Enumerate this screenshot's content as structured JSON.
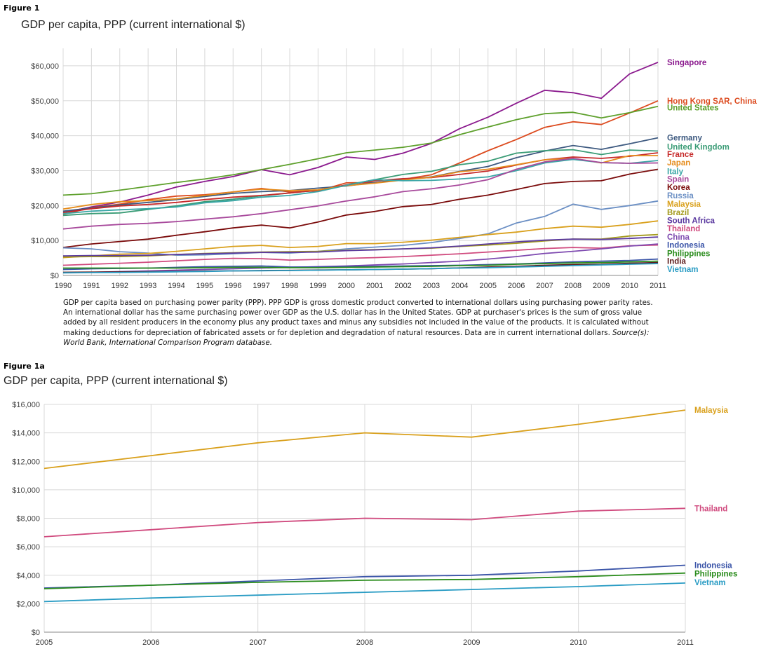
{
  "figure1": {
    "label": "Figure 1",
    "title": "GDP per capita, PPP (current international $)"
  },
  "caption": {
    "text": "GDP per capita based on purchasing power parity (PPP). PPP GDP is gross domestic product converted to international dollars using purchasing power parity rates. An international dollar has the same purchasing power over GDP as the U.S. dollar has in the United States. GDP at purchaser's prices is the sum of gross value added by all resident producers in the economy plus any product taxes and minus any subsidies not included in the value of the products. It is calculated without making deductions for depreciation of fabricated assets or for depletion and degradation of natural resources. Data are in current international dollars.",
    "source": "Source(s): World Bank, International Comparison Program database."
  },
  "figure1a": {
    "label": "Figure 1a",
    "title": "GDP per capita, PPP (current international $)"
  },
  "chart_data": [
    {
      "type": "line",
      "title": "GDP per capita, PPP (current international $)",
      "xlabel": "",
      "ylabel": "",
      "ylim": [
        0,
        65000
      ],
      "grid": true,
      "legend": "right, labels at line ends",
      "x": [
        1990,
        1991,
        1992,
        1993,
        1994,
        1995,
        1996,
        1997,
        1998,
        1999,
        2000,
        2001,
        2002,
        2003,
        2004,
        2005,
        2006,
        2007,
        2008,
        2009,
        2010,
        2011
      ],
      "yticks": [
        {
          "value": 0,
          "label": "$0"
        },
        {
          "value": 10000,
          "label": "$10,000"
        },
        {
          "value": 20000,
          "label": "$20,000"
        },
        {
          "value": 30000,
          "label": "$30,000"
        },
        {
          "value": 40000,
          "label": "$40,000"
        },
        {
          "value": 50000,
          "label": "$50,000"
        },
        {
          "value": 60000,
          "label": "$60,000"
        }
      ],
      "series": [
        {
          "name": "Singapore",
          "color": "#8b1a8e",
          "label_value": 61000,
          "values": [
            18000,
            19600,
            21000,
            23000,
            25300,
            26900,
            28300,
            30300,
            28800,
            30900,
            33900,
            33200,
            35000,
            37800,
            42000,
            45300,
            49300,
            53000,
            52300,
            50700,
            57700,
            61000
          ]
        },
        {
          "name": "Hong Kong SAR, China",
          "color": "#dc4a1e",
          "label_value": 50000,
          "values": [
            17500,
            19400,
            20400,
            21700,
            22700,
            23100,
            23900,
            24900,
            23900,
            24200,
            26500,
            26600,
            27500,
            28800,
            32200,
            35700,
            38900,
            42400,
            44000,
            43200,
            46500,
            50000
          ]
        },
        {
          "name": "United States",
          "color": "#5ea02c",
          "label_value": 48000,
          "values": [
            23000,
            23400,
            24400,
            25500,
            26600,
            27600,
            28800,
            30300,
            31800,
            33400,
            35100,
            35900,
            36700,
            37900,
            40300,
            42500,
            44600,
            46300,
            46700,
            45100,
            46600,
            48400
          ]
        },
        {
          "name": "Germany",
          "color": "#3e5a80",
          "label_value": 39400,
          "values": [
            18400,
            19300,
            20200,
            20900,
            21700,
            22600,
            23500,
            24000,
            24300,
            25000,
            25600,
            26600,
            27400,
            28200,
            29800,
            31200,
            33700,
            35600,
            37200,
            36100,
            37700,
            39400
          ]
        },
        {
          "name": "United Kingdom",
          "color": "#3a9c76",
          "label_value": 36800,
          "values": [
            17200,
            17700,
            17900,
            18900,
            19900,
            21100,
            21800,
            22800,
            23600,
            24400,
            25900,
            27400,
            28900,
            29800,
            31700,
            32700,
            35000,
            35700,
            36000,
            34600,
            35900,
            35600
          ]
        },
        {
          "name": "France",
          "color": "#c62a2a",
          "label_value": 34700,
          "values": [
            18000,
            19100,
            19900,
            20300,
            20900,
            21700,
            22400,
            22900,
            23600,
            24400,
            25900,
            27100,
            27700,
            28000,
            28900,
            29900,
            31600,
            33100,
            33900,
            33500,
            34100,
            35100
          ]
        },
        {
          "name": "Japan",
          "color": "#e58c1c",
          "label_value": 32300,
          "values": [
            19000,
            20300,
            21100,
            21400,
            21900,
            22900,
            23900,
            24700,
            24300,
            24500,
            25700,
            26400,
            27300,
            28100,
            29700,
            30400,
            31700,
            33100,
            33500,
            32200,
            34300,
            34300
          ]
        },
        {
          "name": "Italy",
          "color": "#3aa6a6",
          "label_value": 29800,
          "values": [
            17700,
            18400,
            18800,
            19100,
            19600,
            20800,
            21400,
            22400,
            22900,
            24000,
            25800,
            27400,
            27100,
            27200,
            27600,
            28200,
            30000,
            32200,
            33200,
            32300,
            32100,
            32900
          ]
        },
        {
          "name": "Spain",
          "color": "#a84a9c",
          "label_value": 27600,
          "values": [
            13300,
            14100,
            14600,
            14900,
            15400,
            16100,
            16800,
            17700,
            18800,
            19900,
            21300,
            22500,
            24000,
            24800,
            25900,
            27400,
            30400,
            32500,
            33500,
            32300,
            32100,
            32200
          ]
        },
        {
          "name": "Korea",
          "color": "#7a0a0a",
          "label_value": 25300,
          "values": [
            8000,
            9000,
            9700,
            10400,
            11500,
            12500,
            13600,
            14400,
            13600,
            15300,
            17300,
            18300,
            19700,
            20300,
            21800,
            23000,
            24600,
            26300,
            26900,
            27100,
            29000,
            30400
          ]
        },
        {
          "name": "Russia",
          "color": "#6b8fc4",
          "label_value": 22900,
          "values": [
            7900,
            7600,
            6800,
            6400,
            5800,
            5900,
            6200,
            6600,
            6400,
            6900,
            7600,
            8100,
            8600,
            9400,
            10600,
            11900,
            15000,
            16900,
            20400,
            18900,
            20000,
            21300
          ]
        },
        {
          "name": "Malaysia",
          "color": "#d9a01c",
          "label_value": 20500,
          "values": [
            5100,
            5600,
            6100,
            6300,
            6900,
            7600,
            8300,
            8600,
            8000,
            8300,
            9100,
            9100,
            9500,
            10100,
            10900,
            11700,
            12400,
            13400,
            14100,
            13800,
            14600,
            15600
          ]
        },
        {
          "name": "Brazil",
          "color": "#a39a1c",
          "label_value": 18100,
          "values": [
            5300,
            5400,
            5400,
            5600,
            6000,
            6300,
            6500,
            6700,
            6800,
            6900,
            7200,
            7400,
            7600,
            7800,
            8300,
            8700,
            9200,
            9900,
            10400,
            10400,
            11300,
            11700
          ]
        },
        {
          "name": "South Africa",
          "color": "#5b3aa0",
          "label_value": 15700,
          "values": [
            5600,
            5700,
            5700,
            5800,
            6000,
            6200,
            6400,
            6600,
            6600,
            6700,
            7100,
            7300,
            7600,
            7900,
            8400,
            9000,
            9600,
            10100,
            10400,
            10300,
            10600,
            11000
          ]
        },
        {
          "name": "Thailand",
          "color": "#d04a7e",
          "label_value": 13400,
          "values": [
            2900,
            3200,
            3500,
            3800,
            4200,
            4600,
            4900,
            4800,
            4400,
            4600,
            4900,
            5100,
            5400,
            5800,
            6200,
            6700,
            7200,
            7700,
            8000,
            7800,
            8500,
            8700
          ]
        },
        {
          "name": "China",
          "color": "#7e4ab0",
          "label_value": 11000,
          "values": [
            800,
            900,
            1100,
            1300,
            1500,
            1700,
            1900,
            2100,
            2300,
            2500,
            2700,
            3000,
            3300,
            3700,
            4100,
            4700,
            5400,
            6300,
            6900,
            7600,
            8400,
            9000
          ]
        },
        {
          "name": "Indonesia",
          "color": "#3a54a8",
          "label_value": 8700,
          "values": [
            1700,
            1900,
            2000,
            2100,
            2300,
            2500,
            2600,
            2700,
            2400,
            2400,
            2500,
            2600,
            2700,
            2800,
            2900,
            3100,
            3300,
            3600,
            3900,
            4100,
            4300,
            4700
          ]
        },
        {
          "name": "Philippines",
          "color": "#2a8c1c",
          "label_value": 6300,
          "values": [
            2100,
            2100,
            2100,
            2100,
            2100,
            2200,
            2300,
            2300,
            2200,
            2200,
            2300,
            2400,
            2500,
            2600,
            2800,
            2900,
            3200,
            3400,
            3600,
            3700,
            3900,
            4100
          ]
        },
        {
          "name": "India",
          "color": "#5a1a1a",
          "label_value": 4100,
          "values": [
            900,
            950,
            1000,
            1050,
            1150,
            1250,
            1300,
            1400,
            1450,
            1550,
            1600,
            1700,
            1800,
            1950,
            2150,
            2400,
            2600,
            2900,
            3100,
            3200,
            3500,
            3700
          ]
        },
        {
          "name": "Vietnam",
          "color": "#2a9cc4",
          "label_value": 1800,
          "values": [
            750,
            800,
            850,
            950,
            1050,
            1150,
            1300,
            1350,
            1400,
            1500,
            1600,
            1700,
            1800,
            1950,
            2100,
            2200,
            2400,
            2600,
            2800,
            3000,
            3200,
            3400
          ]
        }
      ]
    },
    {
      "type": "line",
      "title": "GDP per capita, PPP (current international $)",
      "xlabel": "",
      "ylabel": "",
      "ylim": [
        0,
        16000
      ],
      "grid": true,
      "legend": "right, labels at line ends",
      "x": [
        2005,
        2006,
        2007,
        2008,
        2009,
        2010,
        2011
      ],
      "yticks": [
        {
          "value": 0,
          "label": "$0"
        },
        {
          "value": 2000,
          "label": "$2,000"
        },
        {
          "value": 4000,
          "label": "$4,000"
        },
        {
          "value": 6000,
          "label": "$6,000"
        },
        {
          "value": 8000,
          "label": "$8,000"
        },
        {
          "value": 10000,
          "label": "$10,000"
        },
        {
          "value": 12000,
          "label": "$12,000"
        },
        {
          "value": 14000,
          "label": "$14,000"
        },
        {
          "value": 16000,
          "label": "$16,000"
        }
      ],
      "series": [
        {
          "name": "Malaysia",
          "color": "#d9a01c",
          "label_value": 15600,
          "values": [
            11500,
            12400,
            13300,
            14000,
            13700,
            14600,
            15600
          ]
        },
        {
          "name": "Thailand",
          "color": "#d04a7e",
          "label_value": 8700,
          "values": [
            6700,
            7200,
            7700,
            8000,
            7900,
            8500,
            8700
          ]
        },
        {
          "name": "Indonesia",
          "color": "#3a54a8",
          "label_value": 4700,
          "values": [
            3100,
            3300,
            3600,
            3900,
            4000,
            4300,
            4700
          ]
        },
        {
          "name": "Philippines",
          "color": "#2a8c1c",
          "label_value": 4100,
          "values": [
            3050,
            3300,
            3500,
            3650,
            3700,
            3900,
            4150
          ]
        },
        {
          "name": "Vietnam",
          "color": "#2a9cc4",
          "label_value": 3500,
          "values": [
            2150,
            2400,
            2600,
            2800,
            3000,
            3200,
            3450
          ]
        }
      ]
    }
  ]
}
